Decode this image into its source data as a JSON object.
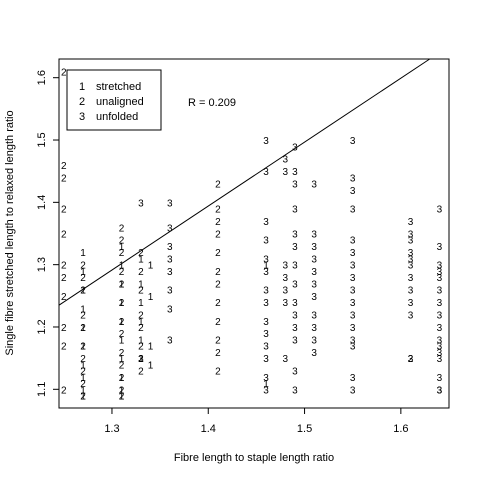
{
  "chart_data": {
    "type": "scatter",
    "xlabel": "Fibre length to staple length ratio",
    "ylabel": "Single fibre stretched length to relaxed length ratio",
    "xlim": [
      1.245,
      1.65
    ],
    "ylim": [
      1.07,
      1.63
    ],
    "xticks": [
      1.3,
      1.4,
      1.5,
      1.6
    ],
    "xtick_labels": [
      "1.3",
      "1.4",
      "1.5",
      "1.6"
    ],
    "yticks": [
      1.1,
      1.2,
      1.3,
      1.4,
      1.5,
      1.6
    ],
    "ytick_labels": [
      "1.1",
      "1.2",
      "1.3",
      "1.4",
      "1.5",
      "1.6"
    ],
    "annotation": "R = 0.209",
    "legend_position": "top-left",
    "legend": [
      {
        "symbol": "1",
        "label": "stretched"
      },
      {
        "symbol": "2",
        "label": "unaligned"
      },
      {
        "symbol": "3",
        "label": "unfolded"
      }
    ],
    "trend_line": {
      "x": [
        1.245,
        1.63
      ],
      "y": [
        1.235,
        1.63
      ]
    },
    "series": [
      {
        "name": "stretched",
        "symbol": "1",
        "x": [
          1.27,
          1.27,
          1.27,
          1.27,
          1.27,
          1.27,
          1.27,
          1.27,
          1.27,
          1.27,
          1.31,
          1.31,
          1.31,
          1.31,
          1.31,
          1.31,
          1.31,
          1.31,
          1.31,
          1.31,
          1.33,
          1.33,
          1.33,
          1.33,
          1.33,
          1.33,
          1.34,
          1.34,
          1.34,
          1.34,
          1.46,
          1.46
        ],
        "y": [
          1.32,
          1.29,
          1.26,
          1.23,
          1.2,
          1.17,
          1.14,
          1.12,
          1.1,
          1.09,
          1.3,
          1.27,
          1.24,
          1.21,
          1.18,
          1.15,
          1.12,
          1.1,
          1.09,
          1.33,
          1.31,
          1.27,
          1.24,
          1.21,
          1.18,
          1.15,
          1.3,
          1.25,
          1.17,
          1.14,
          1.3,
          1.11
        ]
      },
      {
        "name": "unaligned",
        "symbol": "2",
        "x": [
          1.25,
          1.25,
          1.25,
          1.25,
          1.25,
          1.25,
          1.25,
          1.25,
          1.25,
          1.25,
          1.25,
          1.27,
          1.27,
          1.27,
          1.27,
          1.27,
          1.27,
          1.27,
          1.27,
          1.27,
          1.27,
          1.31,
          1.31,
          1.31,
          1.31,
          1.31,
          1.31,
          1.31,
          1.31,
          1.31,
          1.31,
          1.31,
          1.31,
          1.31,
          1.33,
          1.33,
          1.33,
          1.33,
          1.33,
          1.33,
          1.33,
          1.33,
          1.41,
          1.41,
          1.41,
          1.41,
          1.41,
          1.41,
          1.41,
          1.41,
          1.41,
          1.41,
          1.41,
          1.41,
          1.61
        ],
        "y": [
          1.61,
          1.46,
          1.44,
          1.39,
          1.35,
          1.3,
          1.28,
          1.25,
          1.2,
          1.17,
          1.1,
          1.3,
          1.28,
          1.26,
          1.22,
          1.2,
          1.17,
          1.15,
          1.13,
          1.11,
          1.09,
          1.36,
          1.34,
          1.32,
          1.29,
          1.27,
          1.24,
          1.21,
          1.19,
          1.16,
          1.14,
          1.12,
          1.1,
          1.09,
          1.32,
          1.29,
          1.26,
          1.22,
          1.2,
          1.17,
          1.15,
          1.13,
          1.43,
          1.39,
          1.37,
          1.35,
          1.32,
          1.29,
          1.27,
          1.24,
          1.21,
          1.18,
          1.16,
          1.13,
          1.15
        ]
      },
      {
        "name": "unfolded",
        "symbol": "3",
        "x": [
          1.33,
          1.33,
          1.36,
          1.36,
          1.36,
          1.36,
          1.36,
          1.36,
          1.36,
          1.36,
          1.46,
          1.46,
          1.46,
          1.46,
          1.46,
          1.46,
          1.46,
          1.46,
          1.46,
          1.46,
          1.46,
          1.46,
          1.46,
          1.46,
          1.48,
          1.48,
          1.48,
          1.48,
          1.48,
          1.48,
          1.48,
          1.49,
          1.49,
          1.49,
          1.49,
          1.49,
          1.49,
          1.49,
          1.49,
          1.49,
          1.49,
          1.49,
          1.49,
          1.49,
          1.49,
          1.51,
          1.51,
          1.51,
          1.51,
          1.51,
          1.51,
          1.51,
          1.51,
          1.51,
          1.51,
          1.51,
          1.55,
          1.55,
          1.55,
          1.55,
          1.55,
          1.55,
          1.55,
          1.55,
          1.55,
          1.55,
          1.55,
          1.55,
          1.55,
          1.55,
          1.55,
          1.55,
          1.61,
          1.61,
          1.61,
          1.61,
          1.61,
          1.61,
          1.61,
          1.61,
          1.61,
          1.61,
          1.61,
          1.64,
          1.64,
          1.64,
          1.64,
          1.64,
          1.64,
          1.64,
          1.64,
          1.64,
          1.64,
          1.64,
          1.64,
          1.64,
          1.64,
          1.64,
          1.64
        ],
        "y": [
          1.4,
          1.15,
          1.4,
          1.36,
          1.33,
          1.31,
          1.29,
          1.26,
          1.23,
          1.18,
          1.5,
          1.45,
          1.37,
          1.34,
          1.31,
          1.29,
          1.26,
          1.24,
          1.21,
          1.19,
          1.17,
          1.15,
          1.12,
          1.1,
          1.47,
          1.45,
          1.3,
          1.28,
          1.26,
          1.24,
          1.15,
          1.49,
          1.45,
          1.43,
          1.39,
          1.35,
          1.33,
          1.3,
          1.27,
          1.24,
          1.22,
          1.2,
          1.18,
          1.13,
          1.1,
          1.43,
          1.35,
          1.33,
          1.31,
          1.29,
          1.27,
          1.25,
          1.22,
          1.2,
          1.18,
          1.16,
          1.5,
          1.44,
          1.42,
          1.39,
          1.34,
          1.32,
          1.3,
          1.28,
          1.26,
          1.24,
          1.22,
          1.2,
          1.18,
          1.17,
          1.12,
          1.1,
          1.37,
          1.35,
          1.34,
          1.32,
          1.31,
          1.3,
          1.28,
          1.26,
          1.24,
          1.22,
          1.15,
          1.39,
          1.33,
          1.3,
          1.29,
          1.28,
          1.26,
          1.24,
          1.22,
          1.2,
          1.18,
          1.17,
          1.16,
          1.15,
          1.12,
          1.1,
          1.1
        ]
      }
    ]
  }
}
